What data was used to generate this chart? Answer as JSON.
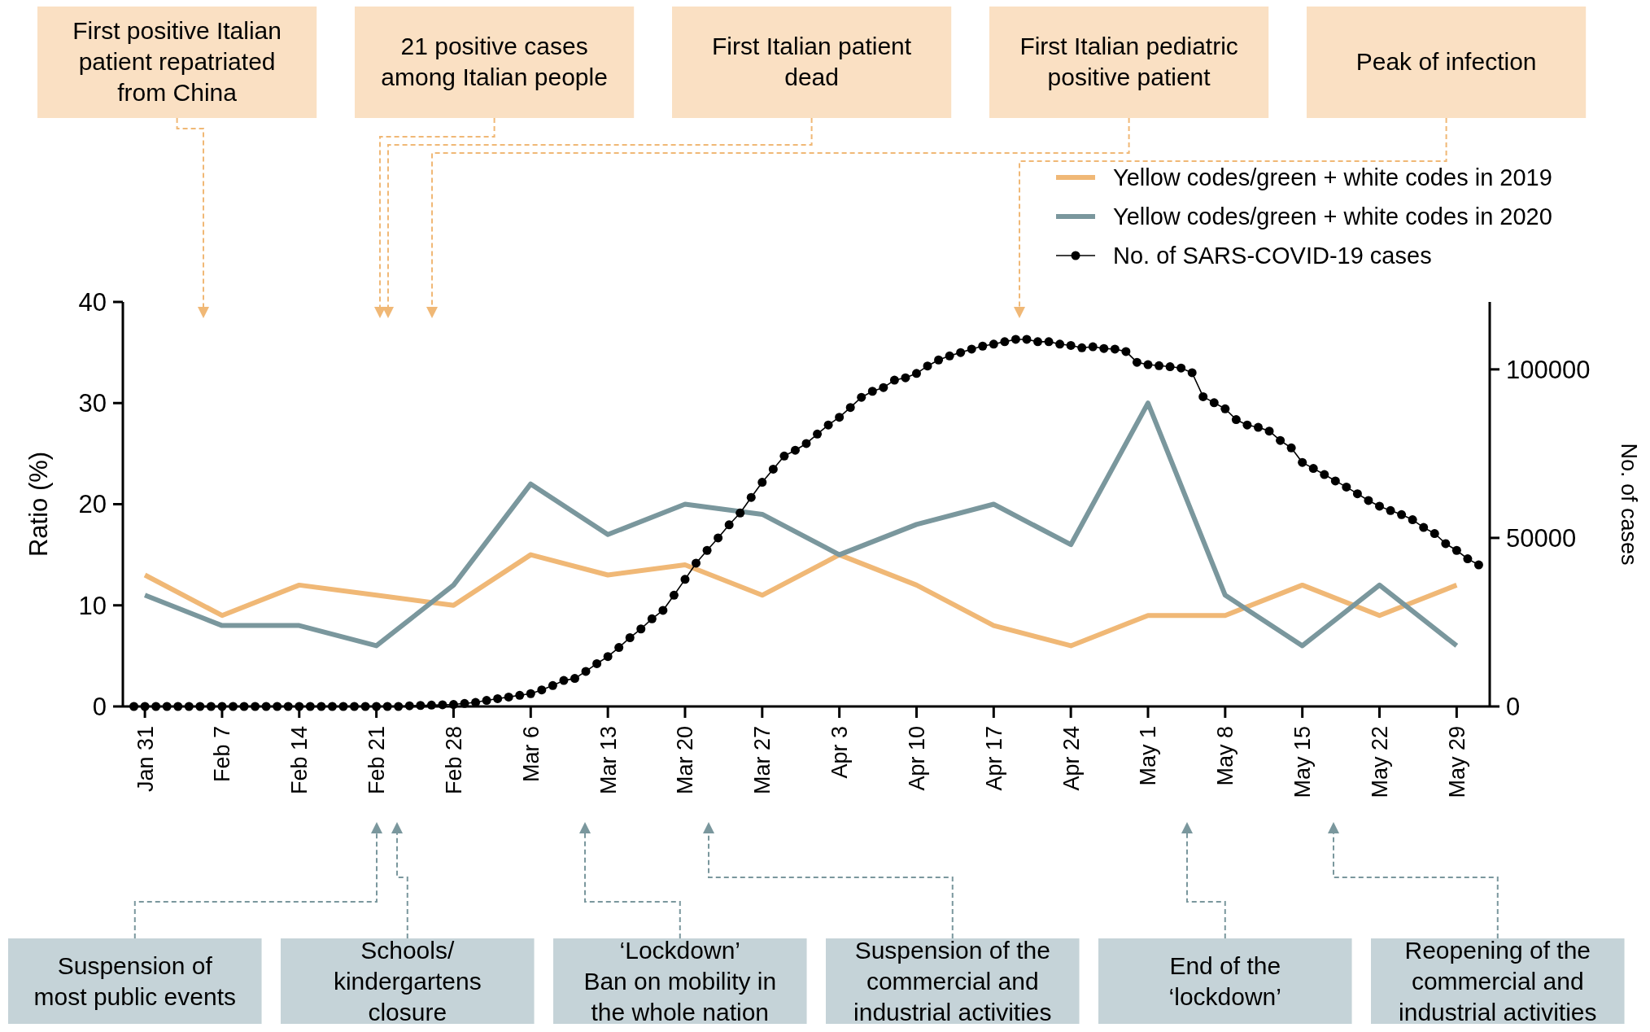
{
  "chart_data": {
    "type": "line",
    "ylabel": "Ratio (%)",
    "y2label": "No. of cases",
    "legend": "top right",
    "ylim": [
      0,
      40
    ],
    "yticks": [
      0,
      10,
      20,
      30,
      40
    ],
    "y2lim": [
      0,
      120000
    ],
    "y2ticks": [
      0,
      50000,
      100000
    ],
    "xlim": [
      "--01-29",
      "--06-01"
    ],
    "xticks": [
      {
        "value": "--01-31",
        "label": "Jan 31"
      },
      {
        "value": "--02-07",
        "label": "Feb 7"
      },
      {
        "value": "--02-14",
        "label": "Feb 14"
      },
      {
        "value": "--02-21",
        "label": "Feb 21"
      },
      {
        "value": "--02-28",
        "label": "Feb 28"
      },
      {
        "value": "--03-06",
        "label": "Mar 6"
      },
      {
        "value": "--03-13",
        "label": "Mar 13"
      },
      {
        "value": "--03-20",
        "label": "Mar 20"
      },
      {
        "value": "--03-27",
        "label": "Mar 27"
      },
      {
        "value": "--04-03",
        "label": "Apr 3"
      },
      {
        "value": "--04-10",
        "label": "Apr 10"
      },
      {
        "value": "--04-17",
        "label": "Apr 17"
      },
      {
        "value": "--04-24",
        "label": "Apr 24"
      },
      {
        "value": "--05-01",
        "label": "May 1"
      },
      {
        "value": "--05-08",
        "label": "May 8"
      },
      {
        "value": "--05-15",
        "label": "May 15"
      },
      {
        "value": "--05-22",
        "label": "May 22"
      },
      {
        "value": "--05-29",
        "label": "May 29"
      }
    ],
    "series": [
      {
        "name": "Yellow codes/green + white codes in 2019",
        "color": "#f0b876",
        "x": [
          "--01-31",
          "--02-07",
          "--02-14",
          "--02-21",
          "--02-28",
          "--03-06",
          "--03-13",
          "--03-20",
          "--03-27",
          "--04-03",
          "--04-10",
          "--04-17",
          "--04-24",
          "--05-01",
          "--05-08",
          "--05-15",
          "--05-22",
          "--05-29"
        ],
        "values": [
          13,
          9,
          12,
          11,
          10,
          15,
          13,
          14,
          11,
          15,
          12,
          8,
          6,
          9,
          9,
          12,
          9,
          12
        ]
      },
      {
        "name": "Yellow codes/green + white codes in 2020",
        "color": "#7a979d",
        "x": [
          "--01-31",
          "--02-07",
          "--02-14",
          "--02-21",
          "--02-28",
          "--03-06",
          "--03-13",
          "--03-20",
          "--03-27",
          "--04-03",
          "--04-10",
          "--04-17",
          "--04-24",
          "--05-01",
          "--05-08",
          "--05-15",
          "--05-22",
          "--05-29"
        ],
        "values": [
          11,
          8,
          8,
          6,
          12,
          22,
          17,
          20,
          19,
          15,
          18,
          20,
          16,
          30,
          11,
          6,
          12,
          6
        ]
      },
      {
        "name": "No. of SARS-COVID-19 cases",
        "color": "#000000",
        "axis": "y2",
        "marker": "circle",
        "x": [
          "--01-30",
          "--01-31",
          "--02-01",
          "--02-02",
          "--02-03",
          "--02-04",
          "--02-05",
          "--02-06",
          "--02-07",
          "--02-08",
          "--02-09",
          "--02-10",
          "--02-11",
          "--02-12",
          "--02-13",
          "--02-14",
          "--02-15",
          "--02-16",
          "--02-17",
          "--02-18",
          "--02-19",
          "--02-20",
          "--02-21",
          "--02-22",
          "--02-23",
          "--02-24",
          "--02-25",
          "--02-26",
          "--02-27",
          "--02-28",
          "--02-29",
          "--03-01",
          "--03-02",
          "--03-03",
          "--03-04",
          "--03-05",
          "--03-06",
          "--03-07",
          "--03-08",
          "--03-09",
          "--03-10",
          "--03-11",
          "--03-12",
          "--03-13",
          "--03-14",
          "--03-15",
          "--03-16",
          "--03-17",
          "--03-18",
          "--03-19",
          "--03-20",
          "--03-21",
          "--03-22",
          "--03-23",
          "--03-24",
          "--03-25",
          "--03-26",
          "--03-27",
          "--03-28",
          "--03-29",
          "--03-30",
          "--03-31",
          "--04-01",
          "--04-02",
          "--04-03",
          "--04-04",
          "--04-05",
          "--04-06",
          "--04-07",
          "--04-08",
          "--04-09",
          "--04-10",
          "--04-11",
          "--04-12",
          "--04-13",
          "--04-14",
          "--04-15",
          "--04-16",
          "--04-17",
          "--04-18",
          "--04-19",
          "--04-20",
          "--04-21",
          "--04-22",
          "--04-23",
          "--04-24",
          "--04-25",
          "--04-26",
          "--04-27",
          "--04-28",
          "--04-29",
          "--04-30",
          "--05-01",
          "--05-02",
          "--05-03",
          "--05-04",
          "--05-05",
          "--05-06",
          "--05-07",
          "--05-08",
          "--05-09",
          "--05-10",
          "--05-11",
          "--05-12",
          "--05-13",
          "--05-14",
          "--05-15",
          "--05-16",
          "--05-17",
          "--05-18",
          "--05-19",
          "--05-20",
          "--05-21",
          "--05-22",
          "--05-23",
          "--05-24",
          "--05-25",
          "--05-26",
          "--05-27",
          "--05-28",
          "--05-29",
          "--05-30",
          "--05-31"
        ],
        "values": [
          0,
          0,
          0,
          0,
          0,
          0,
          0,
          0,
          0,
          0,
          0,
          0,
          0,
          0,
          0,
          0,
          0,
          0,
          0,
          0,
          0,
          0,
          0,
          0,
          0,
          200,
          300,
          400,
          500,
          600,
          900,
          1200,
          1800,
          2300,
          2800,
          3300,
          3800,
          4900,
          6200,
          7700,
          8300,
          10400,
          12700,
          14800,
          17500,
          20400,
          23000,
          26000,
          28500,
          33000,
          37700,
          42500,
          46300,
          50000,
          53900,
          57400,
          62000,
          66500,
          70400,
          74300,
          76000,
          78000,
          80800,
          83500,
          85800,
          88700,
          91700,
          93500,
          94600,
          96800,
          97500,
          98800,
          101000,
          102800,
          104000,
          105000,
          106000,
          106900,
          107500,
          108200,
          108900,
          108900,
          108200,
          108200,
          107500,
          107100,
          106400,
          106700,
          106200,
          106000,
          105300,
          102100,
          101400,
          101100,
          100800,
          100400,
          99000,
          91900,
          90100,
          88300,
          85100,
          83500,
          82800,
          81700,
          78900,
          76700,
          72400,
          70600,
          68800,
          66900,
          65100,
          63100,
          61100,
          59400,
          58100,
          56900,
          55400,
          53100,
          51300,
          48300,
          46300,
          43800,
          42000
        ]
      }
    ],
    "annotations": [
      "First positive Italian\npatient repatriated\nfrom China",
      "21 positive cases\namong Italian people",
      "First Italian patient\ndead",
      "First Italian pediatric\npositive patient",
      "Peak of infection",
      "Suspension of\nmost public events",
      "Schools/\nkindergartens\nclosure",
      "‘Lockdown’\nBan on mobility in\nthe whole nation",
      "Suspension of the\ncommercial and\nindustrial activities",
      "End of the\n‘lockdown’",
      "Reopening of the\ncommercial and\nindustrial activities"
    ]
  }
}
